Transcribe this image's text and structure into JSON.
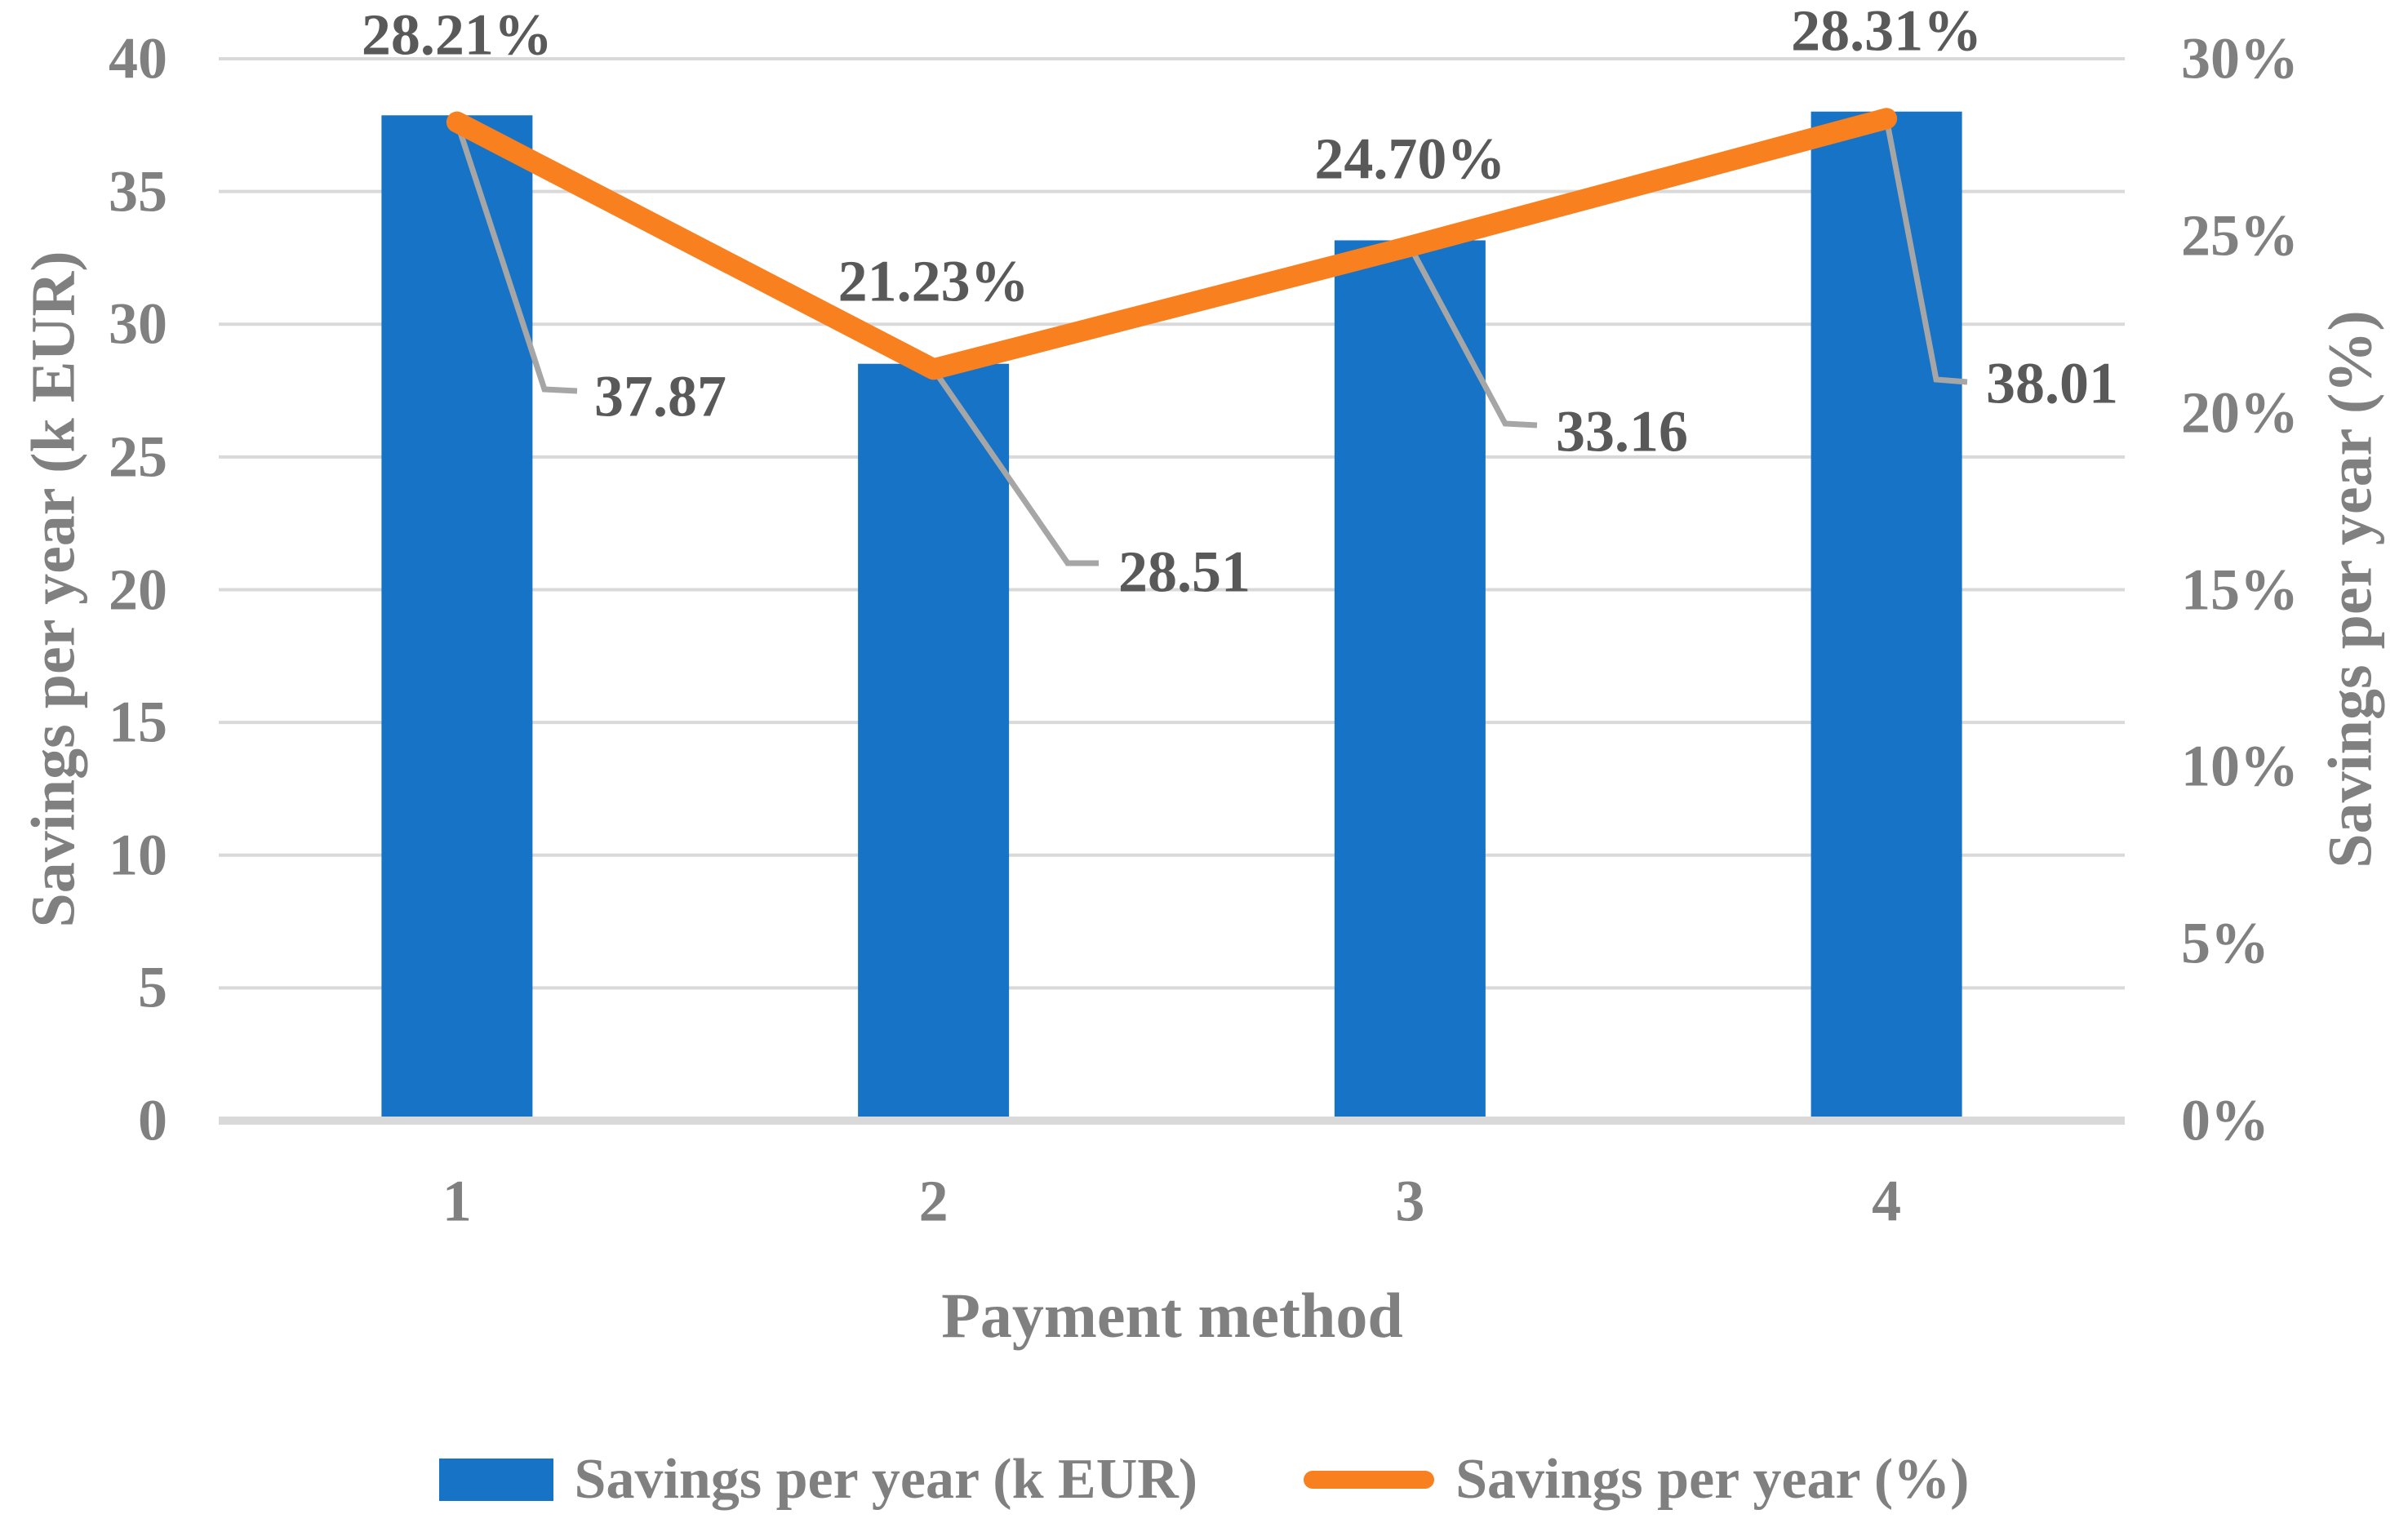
{
  "chart_data": {
    "type": "combo",
    "title": "",
    "xlabel": "Payment method",
    "ylabel_left": "Savings per year (k EUR)",
    "ylabel_right": "Savings per year (%)",
    "categories": [
      "1",
      "2",
      "3",
      "4"
    ],
    "series": [
      {
        "name": "Savings per year (k EUR)",
        "type": "bar",
        "axis": "left",
        "values": [
          37.87,
          28.51,
          33.16,
          38.01
        ],
        "labels": [
          "37.87",
          "28.51",
          "33.16",
          "38.01"
        ]
      },
      {
        "name": "Savings per year (%)",
        "type": "line",
        "axis": "right",
        "values": [
          28.21,
          21.23,
          24.7,
          28.31
        ],
        "labels": [
          "28.21%",
          "21.23%",
          "24.70%",
          "28.31%"
        ]
      }
    ],
    "left_axis": {
      "min": 0,
      "max": 40,
      "step": 5,
      "tick_labels": [
        "0",
        "5",
        "10",
        "15",
        "20",
        "25",
        "30",
        "35",
        "40"
      ]
    },
    "right_axis": {
      "min": 0,
      "max": 30,
      "step": 5,
      "tick_labels": [
        "0%",
        "5%",
        "10%",
        "15%",
        "20%",
        "25%",
        "30%"
      ]
    },
    "grid": true,
    "legend_position": "bottom",
    "colors": {
      "bar": "#1773C6",
      "line": "#F8801E",
      "gridline": "#D9D9D9",
      "leader": "#A6A6A6",
      "tick_text": "#808080",
      "data_label_text": "#595959"
    }
  }
}
